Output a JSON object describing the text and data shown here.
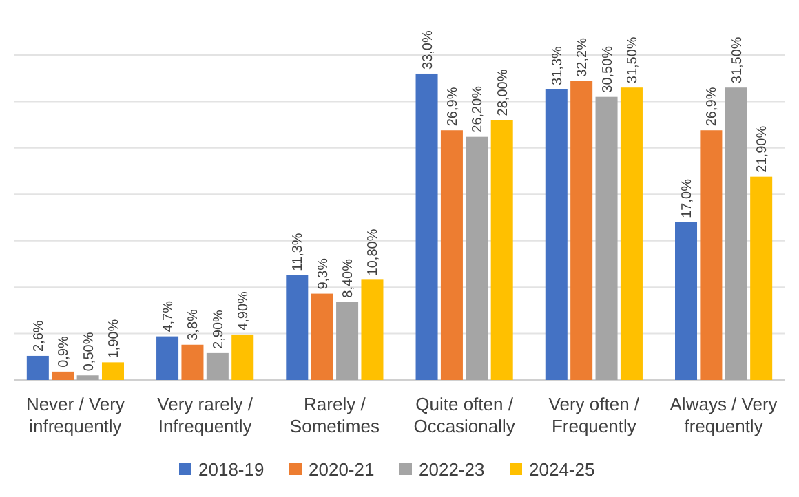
{
  "chart_data": {
    "type": "bar",
    "categories": [
      "Never / Very infrequently",
      "Very rarely / Infrequently",
      "Rarely / Sometimes",
      "Quite often / Occasionally",
      "Very often / Frequently",
      "Always / Very frequently"
    ],
    "series": [
      {
        "name": "2018-19",
        "color": "#4472c4",
        "values": [
          2.6,
          4.7,
          11.3,
          33.0,
          31.3,
          17.0
        ],
        "value_labels": [
          "2,6%",
          "4,7%",
          "11,3%",
          "33,0%",
          "31,3%",
          "17,0%"
        ]
      },
      {
        "name": "2020-21",
        "color": "#ed7d31",
        "values": [
          0.9,
          3.8,
          9.3,
          26.9,
          32.2,
          26.9
        ],
        "value_labels": [
          "0,9%",
          "3,8%",
          "9,3%",
          "26,9%",
          "32,2%",
          "26,9%"
        ]
      },
      {
        "name": "2022-23",
        "color": "#a5a5a5",
        "values": [
          0.5,
          2.9,
          8.4,
          26.2,
          30.5,
          31.5
        ],
        "value_labels": [
          "0,50%",
          "2,90%",
          "8,40%",
          "26,20%",
          "30,50%",
          "31,50%"
        ]
      },
      {
        "name": "2024-25",
        "color": "#ffc000",
        "values": [
          1.9,
          4.9,
          10.8,
          28.0,
          31.5,
          21.9
        ],
        "value_labels": [
          "1,90%",
          "4,90%",
          "10,80%",
          "28,00%",
          "31,50%",
          "21,90%"
        ]
      }
    ],
    "ylim": [
      0,
      35
    ],
    "yticks": [
      {
        "value": 0,
        "label": null
      },
      {
        "value": 5,
        "label": null
      },
      {
        "value": 10,
        "label": null
      },
      {
        "value": 15,
        "label": null
      },
      {
        "value": 20,
        "label": null
      },
      {
        "value": 25,
        "label": null
      },
      {
        "value": 30,
        "label": null
      },
      {
        "value": 35,
        "label": null
      }
    ],
    "grid": "y",
    "tick_labels": "x",
    "legend": "bottom"
  }
}
